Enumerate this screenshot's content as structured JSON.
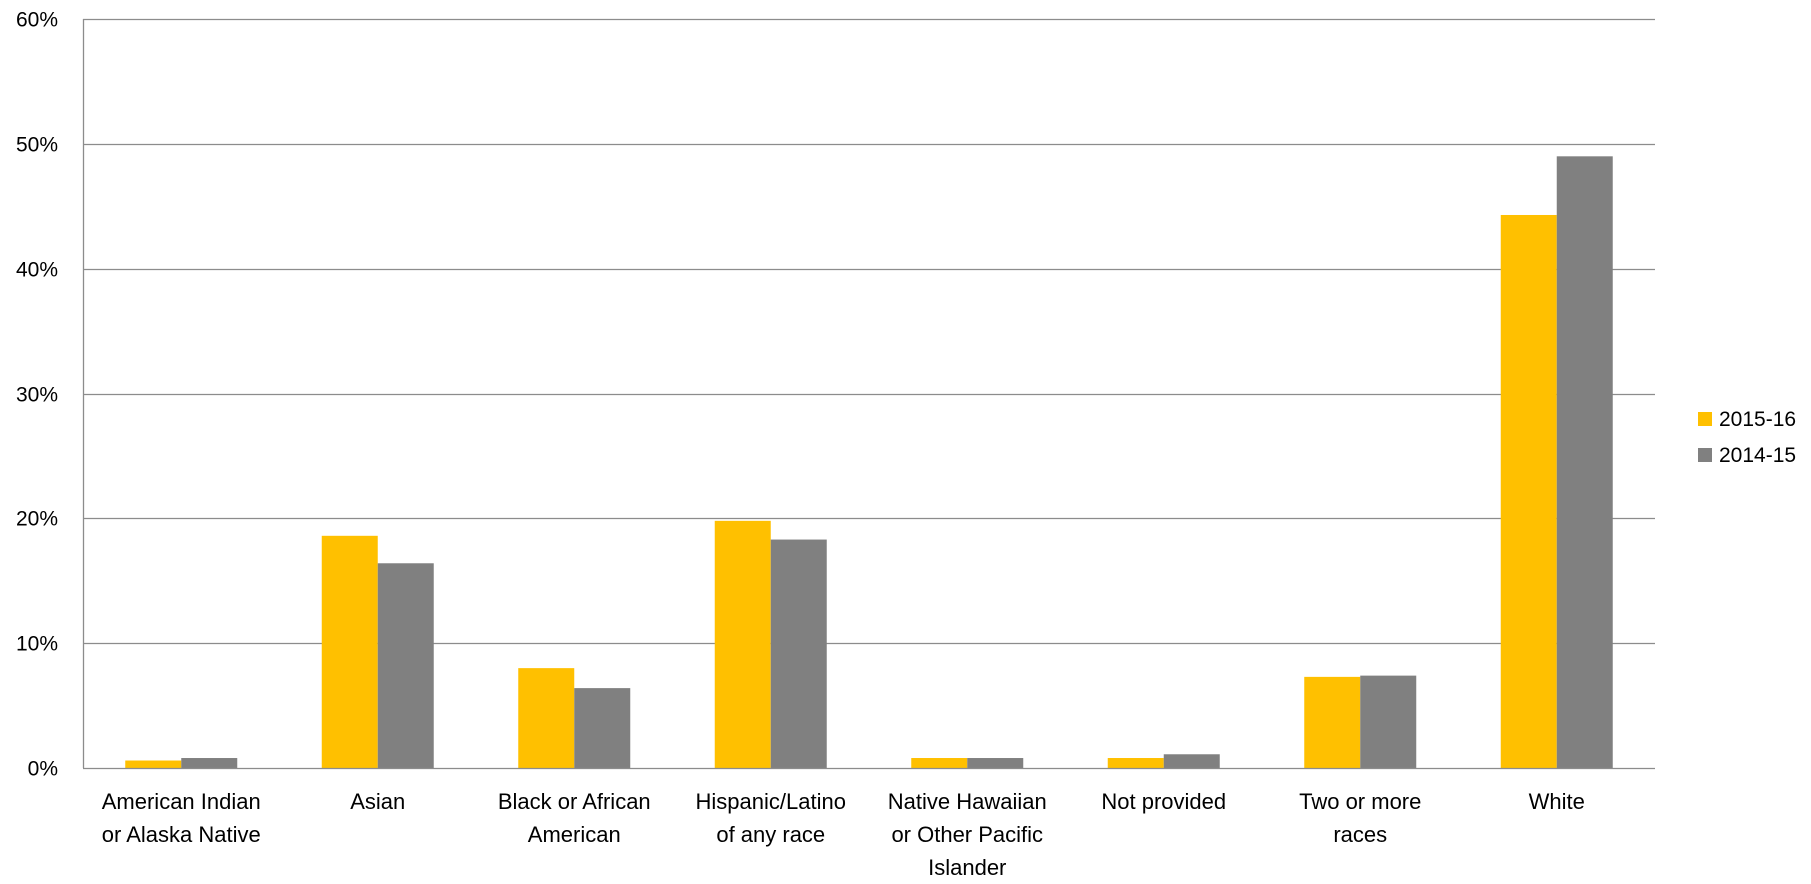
{
  "chart_data": {
    "type": "bar",
    "title": "",
    "xlabel": "",
    "ylabel": "",
    "categories": [
      [
        "American Indian",
        "or Alaska Native"
      ],
      [
        "Asian"
      ],
      [
        "Black or African",
        "American"
      ],
      [
        "Hispanic/Latino",
        "of any race"
      ],
      [
        "Native Hawaiian",
        "or Other Pacific",
        "Islander"
      ],
      [
        "Not provided"
      ],
      [
        "Two or more",
        "races"
      ],
      [
        "White"
      ]
    ],
    "series": [
      {
        "name": "2015-16",
        "color": "#FFC000",
        "values": [
          0.6,
          18.6,
          8.0,
          19.8,
          0.8,
          0.8,
          7.3,
          44.3
        ]
      },
      {
        "name": "2014-15",
        "color": "#808080",
        "values": [
          0.8,
          16.4,
          6.4,
          18.3,
          0.8,
          1.1,
          7.4,
          49.0
        ]
      }
    ],
    "ylim": [
      0,
      60
    ],
    "yticks": [
      0,
      10,
      20,
      30,
      40,
      50,
      60
    ],
    "ytick_labels": [
      "0%",
      "10%",
      "20%",
      "30%",
      "40%",
      "50%",
      "60%"
    ],
    "grid": true,
    "legend": "right",
    "gridline_color": "#8C8C8C"
  }
}
